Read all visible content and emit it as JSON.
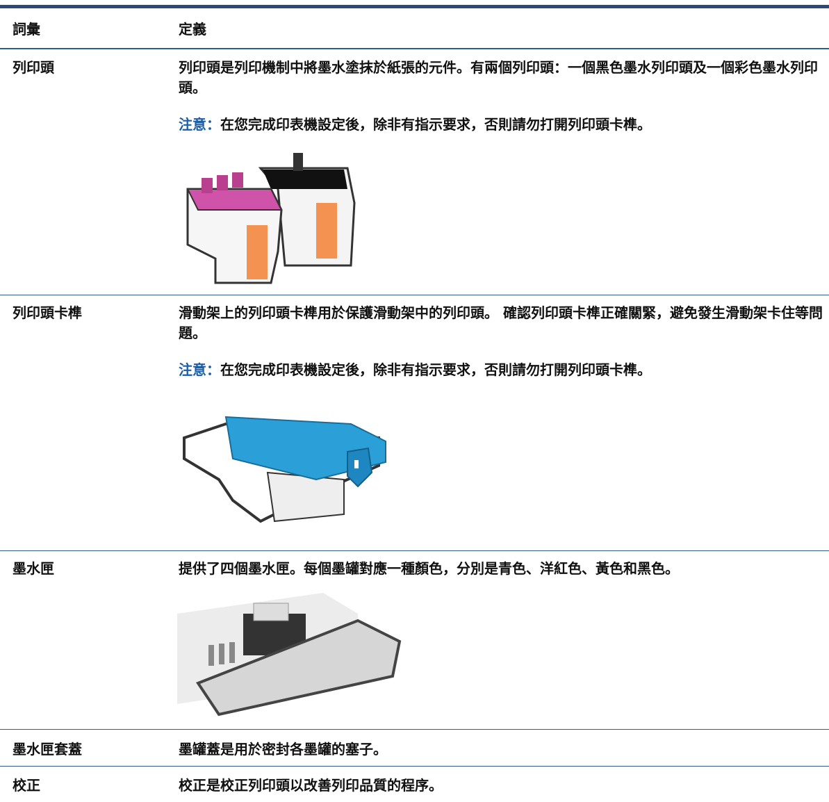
{
  "table": {
    "header": [
      "詞彙",
      "定義"
    ],
    "rows": [
      {
        "term": "列印頭",
        "definition": "列印頭是列印機制中將墨水塗抹於紙張的元件。有兩個列印頭：一個黑色墨水列印頭及一個彩色墨水列印頭。",
        "note_label": "注意：",
        "note": "在您完成印表機設定後，除非有指示要求，否則請勿打開列印頭卡榫。"
      },
      {
        "term": "列印頭卡榫",
        "definition": "滑動架上的列印頭卡榫用於保護滑動架中的列印頭。 確認列印頭卡榫正確關緊，避免發生滑動架卡住等問題。",
        "note_label": "注意：",
        "note": "在您完成印表機設定後，除非有指示要求，否則請勿打開列印頭卡榫。"
      },
      {
        "term": "墨水匣",
        "definition": "提供了四個墨水匣。每個墨罐對應一種顏色，分別是青色、洋紅色、黃色和黑色。"
      },
      {
        "term": "墨水匣套蓋",
        "definition": "墨罐蓋是用於密封各墨罐的塞子。"
      },
      {
        "term": "校正",
        "definition": "校正是校正列印頭以改善列印品質的程序。"
      }
    ]
  }
}
